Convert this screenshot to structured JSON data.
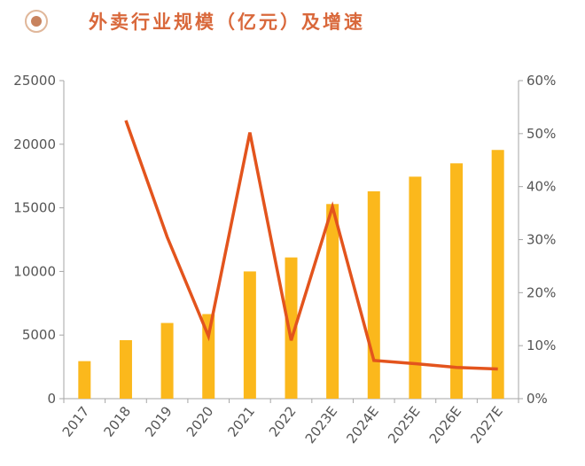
{
  "header": {
    "icon": "circle-dot-icon",
    "title": "外卖行业规模（亿元）及增速"
  },
  "colors": {
    "bar": "#fbb81c",
    "line": "#e3541d",
    "title": "#d9683b",
    "axis": "#a6a6a6"
  },
  "chart_data": {
    "type": "bar",
    "title": "外卖行业规模（亿元）及增速",
    "categories": [
      "2017",
      "2018",
      "2019",
      "2020",
      "2021",
      "2022",
      "2023E",
      "2024E",
      "2025E",
      "2026E",
      "2027E"
    ],
    "series": [
      {
        "name": "外卖行业规模（亿元）",
        "type": "bar",
        "axis": "left",
        "values": [
          2950,
          4600,
          5950,
          6650,
          10000,
          11100,
          15300,
          16300,
          17450,
          18500,
          19550
        ]
      },
      {
        "name": "增速",
        "type": "line",
        "axis": "right",
        "values": [
          null,
          52.5,
          30.5,
          11.8,
          50.2,
          11.0,
          36.2,
          7.2,
          6.6,
          5.9,
          5.6
        ]
      }
    ],
    "y_left": {
      "lim": [
        0,
        25000
      ],
      "ticks": [
        0,
        5000,
        10000,
        15000,
        20000,
        25000
      ],
      "tick_labels": [
        "0",
        "5000",
        "10000",
        "15000",
        "20000",
        "25000"
      ]
    },
    "y_right": {
      "lim": [
        0,
        60
      ],
      "ticks": [
        0,
        10,
        20,
        30,
        40,
        50,
        60
      ],
      "tick_labels": [
        "0%",
        "10%",
        "20%",
        "30%",
        "40%",
        "50%",
        "60%"
      ]
    },
    "grid": false,
    "legend": "none"
  }
}
